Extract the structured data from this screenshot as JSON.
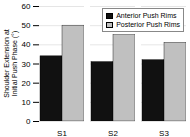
{
  "chart_data": {
    "type": "bar",
    "categories": [
      "S1",
      "S2",
      "S3"
    ],
    "series": [
      {
        "name": "Anterior Push Rims",
        "color": "#111111",
        "values": [
          34,
          31,
          32
        ]
      },
      {
        "name": "Posterior Push Rims",
        "color": "#c0c0c0",
        "values": [
          50,
          45,
          41
        ]
      }
    ],
    "ylabel": "Shoulder Extension at\nInitial Push Phase (°)",
    "ylim": [
      0,
      60
    ],
    "yticks": [
      0,
      10,
      20,
      30,
      40,
      50,
      60
    ],
    "grid": true,
    "legend": "upper right"
  }
}
